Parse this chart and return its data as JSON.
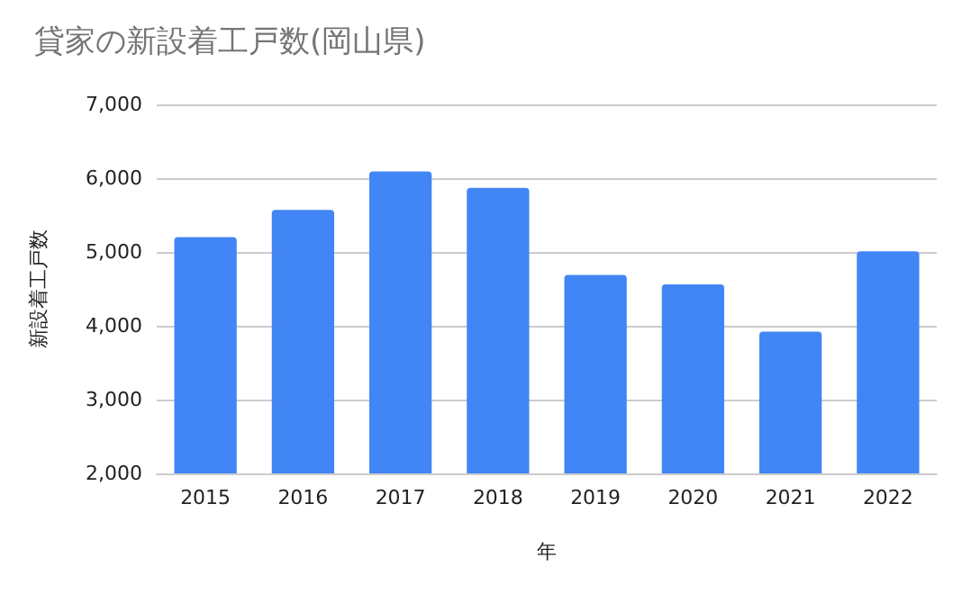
{
  "chart_data": {
    "type": "bar",
    "title": "貸家の新設着工戸数(岡山県)",
    "xlabel": "年",
    "ylabel": "新設着工戸数",
    "categories": [
      "2015",
      "2016",
      "2017",
      "2018",
      "2019",
      "2020",
      "2021",
      "2022"
    ],
    "values": [
      5200,
      5570,
      6090,
      5870,
      4690,
      4560,
      3920,
      5010
    ],
    "color": "#4285f4",
    "ylim": [
      2000,
      7000
    ],
    "yticks": [
      {
        "value": 2000,
        "label": "2,000"
      },
      {
        "value": 3000,
        "label": "3,000"
      },
      {
        "value": 4000,
        "label": "4,000"
      },
      {
        "value": 5000,
        "label": "5,000"
      },
      {
        "value": 6000,
        "label": "6,000"
      },
      {
        "value": 7000,
        "label": "7,000"
      }
    ],
    "grid": "y"
  }
}
